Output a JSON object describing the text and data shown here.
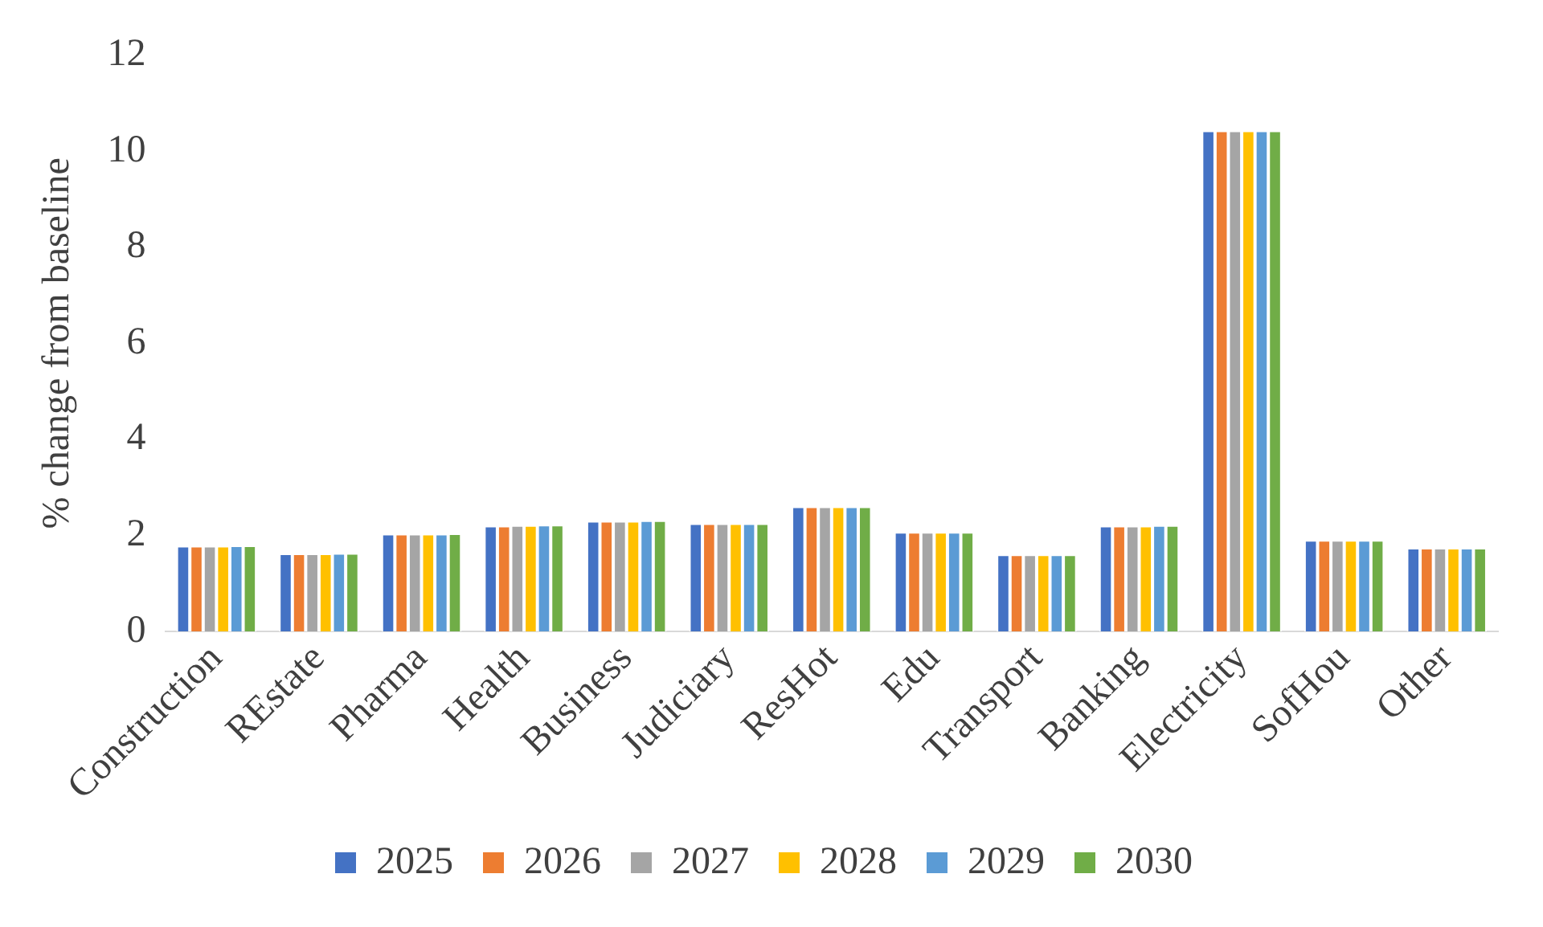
{
  "chart_data": {
    "type": "bar",
    "ylabel": "% change from baseline",
    "categories": [
      "Construction",
      "REstate",
      "Pharma",
      "Health",
      "Business",
      "Judiciary",
      "ResHot",
      "Edu",
      "Transport",
      "Banking",
      "Electricity",
      "SofHou",
      "Other"
    ],
    "series": [
      {
        "name": "2025",
        "color": "#4472c4",
        "values": [
          1.78,
          1.62,
          2.03,
          2.2,
          2.3,
          2.25,
          2.6,
          2.07,
          1.6,
          2.2,
          10.43,
          1.9,
          1.74
        ]
      },
      {
        "name": "2026",
        "color": "#ed7d31",
        "values": [
          1.78,
          1.62,
          2.03,
          2.2,
          2.3,
          2.25,
          2.6,
          2.07,
          1.6,
          2.2,
          10.43,
          1.9,
          1.74
        ]
      },
      {
        "name": "2027",
        "color": "#a5a5a5",
        "values": [
          1.78,
          1.62,
          2.03,
          2.21,
          2.3,
          2.25,
          2.6,
          2.07,
          1.6,
          2.2,
          10.43,
          1.9,
          1.74
        ]
      },
      {
        "name": "2028",
        "color": "#ffc000",
        "values": [
          1.78,
          1.62,
          2.03,
          2.21,
          2.3,
          2.25,
          2.6,
          2.07,
          1.6,
          2.2,
          10.43,
          1.9,
          1.74
        ]
      },
      {
        "name": "2029",
        "color": "#5b9bd5",
        "values": [
          1.79,
          1.63,
          2.03,
          2.22,
          2.31,
          2.25,
          2.6,
          2.07,
          1.6,
          2.21,
          10.43,
          1.9,
          1.74
        ]
      },
      {
        "name": "2030",
        "color": "#70ad47",
        "values": [
          1.79,
          1.63,
          2.04,
          2.22,
          2.31,
          2.25,
          2.6,
          2.07,
          1.6,
          2.21,
          10.43,
          1.9,
          1.74
        ]
      }
    ],
    "ylim": [
      0,
      12
    ],
    "yticks": [
      0,
      2,
      4,
      6,
      8,
      10,
      12
    ],
    "grid": false,
    "legend": "bottom"
  }
}
